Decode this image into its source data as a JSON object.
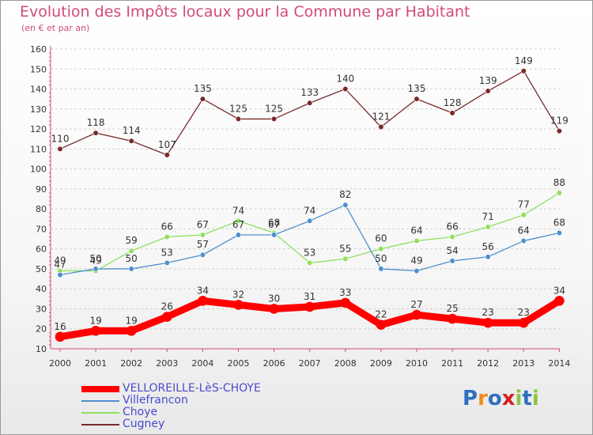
{
  "chart_data": {
    "type": "line",
    "title": "Evolution des Impôts locaux pour la Commune par Habitant",
    "subtitle": "(en € et par an)",
    "x": [
      "2000",
      "2001",
      "2002",
      "2003",
      "2004",
      "2005",
      "2006",
      "2007",
      "2008",
      "2009",
      "2010",
      "2011",
      "2012",
      "2013",
      "2014"
    ],
    "ylim": [
      10,
      160
    ],
    "yticks": [
      10,
      20,
      30,
      40,
      50,
      60,
      70,
      80,
      90,
      100,
      110,
      120,
      130,
      140,
      150,
      160
    ],
    "grid": "horizontal dashed",
    "legend_position": "bottom-left",
    "series": [
      {
        "name": "VELLOREILLE-LèS-CHOYE",
        "color": "#ff0000",
        "values": [
          16,
          19,
          19,
          26,
          34,
          32,
          30,
          31,
          33,
          22,
          27,
          25,
          23,
          23,
          34
        ]
      },
      {
        "name": "Villefrancon",
        "color": "#4f8fcf",
        "values": [
          47,
          50,
          50,
          53,
          57,
          67,
          67,
          74,
          82,
          50,
          49,
          54,
          56,
          64,
          68
        ]
      },
      {
        "name": "Choye",
        "color": "#8fdf5f",
        "values": [
          49,
          49,
          59,
          66,
          67,
          74,
          68,
          53,
          55,
          60,
          64,
          66,
          71,
          77,
          88
        ]
      },
      {
        "name": "Cugney",
        "color": "#7a2a2a",
        "values": [
          110,
          118,
          114,
          107,
          135,
          125,
          125,
          133,
          140,
          121,
          135,
          128,
          139,
          149,
          119
        ]
      }
    ]
  },
  "logo": {
    "text": "Proxiti",
    "colors": [
      "#2f6fbf",
      "#f08c1a",
      "#2f6fbf",
      "#d62020",
      "#8cc63f",
      "#2f6fbf",
      "#8cc63f"
    ]
  }
}
